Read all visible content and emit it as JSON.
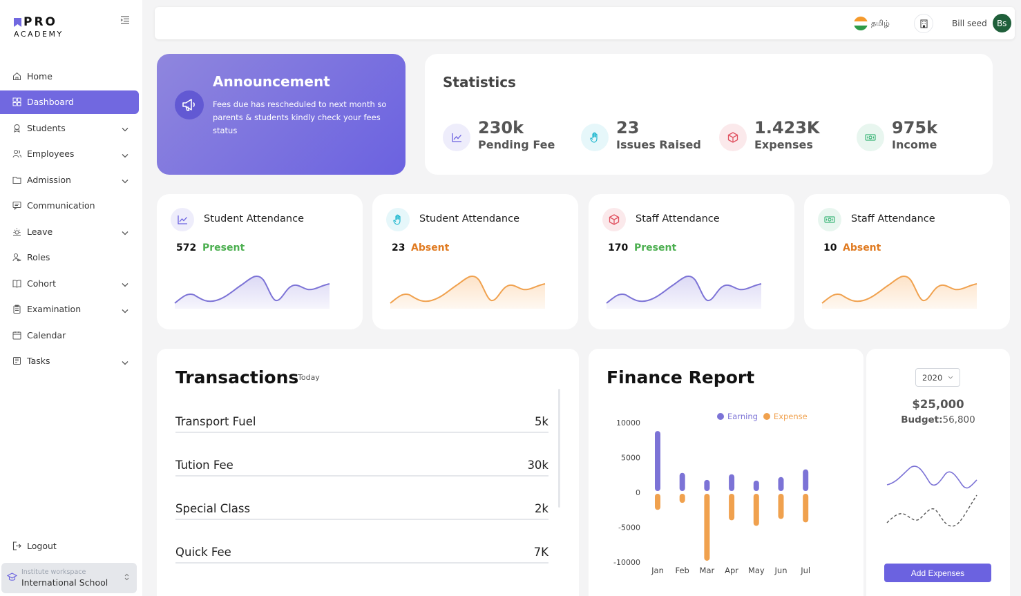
{
  "brand": {
    "logo_top": "PRO",
    "logo_bottom": "ACADEMY"
  },
  "sidebar": {
    "items": [
      {
        "label": "Home",
        "icon": "home-icon"
      },
      {
        "label": "Dashboard",
        "icon": "grid-icon",
        "active": true
      },
      {
        "label": "Students",
        "icon": "badge-icon",
        "expandable": true
      },
      {
        "label": "Employees",
        "icon": "users-icon",
        "expandable": true
      },
      {
        "label": "Admission",
        "icon": "folder-icon",
        "expandable": true
      },
      {
        "label": "Communication",
        "icon": "chat-icon"
      },
      {
        "label": "Leave",
        "icon": "sun-icon",
        "expandable": true
      },
      {
        "label": "Roles",
        "icon": "user-key-icon"
      },
      {
        "label": "Cohort",
        "icon": "book-icon",
        "expandable": true
      },
      {
        "label": "Examination",
        "icon": "clipboard-icon",
        "expandable": true
      },
      {
        "label": "Calendar",
        "icon": "calendar-icon"
      },
      {
        "label": "Tasks",
        "icon": "task-icon",
        "expandable": true
      }
    ],
    "logout": "Logout",
    "workspace": {
      "label": "Institute workspace",
      "name": "International School"
    }
  },
  "header": {
    "language": "தமிழ்",
    "user_name": "Bill seed",
    "avatar_initials": "Bs"
  },
  "announcement": {
    "title": "Announcement",
    "text": "Fees due has rescheduled to next month so parents & students kindly check your fees status"
  },
  "statistics": {
    "title": "Statistics",
    "items": [
      {
        "value": "230k",
        "label": "Pending Fee",
        "icon": "trend-icon",
        "color": "#6b62e0",
        "bg": "#eeedfb"
      },
      {
        "value": "23",
        "label": "Issues Raised",
        "icon": "hand-icon",
        "color": "#22b8cf",
        "bg": "#e6f7fa"
      },
      {
        "value": "1.423K",
        "label": "Expenses",
        "icon": "box-icon",
        "color": "#e05260",
        "bg": "#fbe9eb"
      },
      {
        "value": "975k",
        "label": "Income",
        "icon": "cash-icon",
        "color": "#3fb77a",
        "bg": "#e8f6ef"
      }
    ]
  },
  "attendance": [
    {
      "title": "Student Attendance",
      "count": "572",
      "status": "Present",
      "status_color": "#4caf50",
      "icon": "trend-icon",
      "icon_color": "#6b62e0",
      "icon_bg": "#eeedfb",
      "line_color": "#7c73d6",
      "fill_color": "#dcd9f5"
    },
    {
      "title": "Student Attendance",
      "count": "23",
      "status": "Absent",
      "status_color": "#e07b22",
      "icon": "hand-icon",
      "icon_color": "#22b8cf",
      "icon_bg": "#e6f7fa",
      "line_color": "#f0a14e",
      "fill_color": "#fde3c8"
    },
    {
      "title": "Staff Attendance",
      "count": "170",
      "status": "Present",
      "status_color": "#4caf50",
      "icon": "box-icon",
      "icon_color": "#e05260",
      "icon_bg": "#fbe9eb",
      "line_color": "#7c73d6",
      "fill_color": "#dcd9f5"
    },
    {
      "title": "Staff Attendance",
      "count": "10",
      "status": "Absent",
      "status_color": "#e07b22",
      "icon": "cash-icon",
      "icon_color": "#3fb77a",
      "icon_bg": "#e8f6ef",
      "line_color": "#f0a14e",
      "fill_color": "#fde3c8"
    }
  ],
  "transactions": {
    "title": "Transactions",
    "period": "Today",
    "rows": [
      {
        "name": "Transport Fuel",
        "amount": "5k"
      },
      {
        "name": "Tution Fee",
        "amount": "30k"
      },
      {
        "name": "Special Class",
        "amount": "2k"
      },
      {
        "name": "Quick Fee",
        "amount": "7K"
      }
    ]
  },
  "finance": {
    "title": "Finance Report"
  },
  "budget": {
    "year": "2020",
    "amount": "$25,000",
    "budget_label": "Budget:",
    "budget_value": "56,800",
    "button": "Add Expenses"
  },
  "chart_data": {
    "type": "bar",
    "title": "Finance Report",
    "categories": [
      "Jan",
      "Feb",
      "Mar",
      "Apr",
      "May",
      "Jun",
      "Jul"
    ],
    "series": [
      {
        "name": "Earning",
        "color": "#7c73d6",
        "values": [
          8800,
          2800,
          1800,
          2600,
          1700,
          2200,
          3300
        ]
      },
      {
        "name": "Expense",
        "color": "#f0a14e",
        "values": [
          -2500,
          -1500,
          -9800,
          -4000,
          -4800,
          -3800,
          -4300
        ]
      }
    ],
    "ylim": [
      -10000,
      10000
    ],
    "yticks": [
      "10000",
      "5000",
      "0",
      "-5000",
      "-10000"
    ],
    "xlabel": "",
    "ylabel": "",
    "legend": "top-right"
  }
}
